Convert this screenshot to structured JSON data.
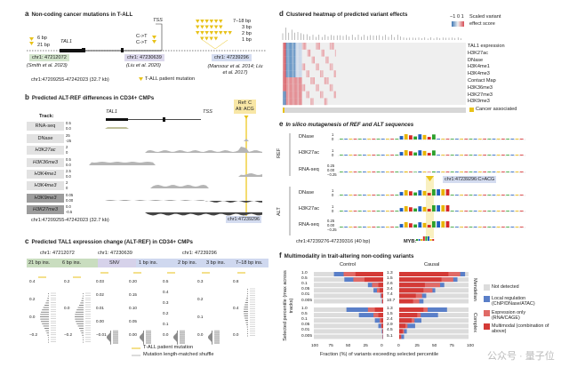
{
  "panel_a": {
    "letter": "a",
    "title": "Non-coding cancer mutations in T-ALL",
    "gene": "TAL1",
    "tss": "TSS",
    "left_sizes": [
      "6 bp",
      "21 bp"
    ],
    "snv_labels": [
      "C->T",
      "C->T"
    ],
    "right_sizes": [
      "7–18 bp",
      "3 bp",
      "2 bp",
      "1 bp"
    ],
    "loci": [
      {
        "pos": "chr1: 47212072",
        "cite": "(Smith et al. 2023)",
        "color": "#d3e4cc"
      },
      {
        "pos": "chr1: 47230639",
        "cite": "(Liu et al. 2020)",
        "color": "#dcd8ec"
      },
      {
        "pos": "chr1: 47239296",
        "cite": "(Mansour et al. 2014; Liu et al. 2017)",
        "color": "#d4dcf0"
      }
    ],
    "region": "chr1:47209255-47242023 (32.7 kb)",
    "legend": "T-ALL patient mutation"
  },
  "panel_b": {
    "letter": "b",
    "title": "Predicted ALT-REF differences in CD34+ CMPs",
    "track_header": "Track:",
    "gene": "TAL1",
    "tss": "TSS",
    "mutation_box": [
      "Ref: C",
      "Alt: ACG"
    ],
    "tracks": [
      {
        "name": "RNA-seq",
        "scale": [
          "0.5",
          "0.0"
        ]
      },
      {
        "name": "DNase",
        "scale": [
          "25",
          "-25"
        ]
      },
      {
        "name": "H3K27ac",
        "scale": [
          "2",
          "0"
        ]
      },
      {
        "name": "H3K36me3",
        "scale": [
          "0.5",
          "0.0"
        ]
      },
      {
        "name": "H3K4me1",
        "scale": [
          "2.5",
          "0.0"
        ]
      },
      {
        "name": "H3K4me3",
        "scale": [
          "2",
          "0"
        ]
      },
      {
        "name": "H3K9me3",
        "scale": [
          "0.05",
          "0.00"
        ]
      },
      {
        "name": "H3K27me3",
        "scale": [
          "0.0",
          "-0.5"
        ]
      }
    ],
    "region": "chr1:47209255-47242023 (32.7 kb)",
    "position": "chr1:47239296"
  },
  "panel_c": {
    "letter": "c",
    "title": "Predicted TAL1 expression change (ALT-REF) in CD34+ CMPs",
    "loci": [
      "chr1: 47212072",
      "chr1: 47230639",
      "chr1: 47239296"
    ],
    "groups": [
      "21 bp ins.",
      "6 bp ins.",
      "SNV",
      "1 bp ins.",
      "2 bp ins.",
      "3 bp ins.",
      "7–18 bp ins."
    ],
    "axes": [
      [
        "0.4",
        "0.2",
        "0.0",
        "−0.2"
      ],
      [
        "0.2",
        "0.0",
        "−0.2"
      ],
      [
        "0.03",
        "0.02",
        "0.01",
        "0.00",
        "−0.01"
      ],
      [
        "0.20",
        "0.15",
        "0.10",
        "0.05",
        "0.00"
      ],
      [
        "0.5",
        "0.4",
        "0.3",
        "0.2",
        "0.1",
        "0.0"
      ],
      [
        "0.3",
        "0.2",
        "0.1",
        "0.0"
      ],
      [
        "0.8",
        "0.4",
        "0.0"
      ]
    ],
    "legend": [
      "T-ALL patient mutation",
      "Mutation length-matched shuffle"
    ]
  },
  "panel_d": {
    "letter": "d",
    "title": "Clustered heatmap of predicted variant effects",
    "scale_ticks": [
      "−1",
      "0",
      "1"
    ],
    "scale_label": [
      "Scaled variant",
      "effect score"
    ],
    "rows": [
      "TAL1 expression",
      "H3K27ac",
      "DNase",
      "H3K4me1",
      "H3K4me3",
      "Contact Map",
      "H3K36me3",
      "H3K27me3",
      "H3K9me3"
    ],
    "cancer_label": "Cancer associated"
  },
  "panel_e": {
    "letter": "e",
    "title": "In silico mutagenesis of REF and ALT sequences",
    "groups": [
      "REF",
      "ALT"
    ],
    "tracks": [
      {
        "name": "DNase",
        "ticks": [
          "1",
          "0"
        ]
      },
      {
        "name": "H3K27ac",
        "ticks": [
          "1",
          "0"
        ]
      },
      {
        "name": "RNA-seq",
        "ticks": [
          "0.25",
          "0.00",
          "−0.25"
        ]
      }
    ],
    "mutation": "chr1:47239296:C>ACG",
    "region": "chr1:47239276-47239316 (40 bp)",
    "motif": "MYB:"
  },
  "chart_data": {
    "type": "bar",
    "title": "Multimodality in trait-altering non-coding variants",
    "letter": "f",
    "panels": [
      "Control",
      "Causal"
    ],
    "facets": [
      "Mendelian",
      "Complex"
    ],
    "ylabel": "Selected percentile (max across tracks)",
    "xlabel": "Fraction (%) of variants exceeding selected percentile",
    "percentiles": [
      "1.0",
      "0.5",
      "0.1",
      "0.05",
      "0.01",
      "0.005"
    ],
    "xticks_control": [
      "100",
      "75",
      "50",
      "25",
      "0"
    ],
    "xticks_causal": [
      "0",
      "25",
      "50",
      "75",
      "100"
    ],
    "ratios": {
      "Mendelian": [
        "1.3",
        "1.5",
        "2.6",
        "3.4",
        "7.4",
        "10.7"
      ],
      "Complex": [
        "1.3",
        "1.5",
        "2.4",
        "2.9",
        "4.5",
        "5.1"
      ]
    },
    "legend": [
      {
        "label": "Not detected",
        "color": "#dcdcdc"
      },
      {
        "label": "Local regulation (ChIP/DNase/ATAC)",
        "color": "#5a7fc8"
      },
      {
        "label": "Expression only (RNA/CAGE)",
        "color": "#e06a66"
      },
      {
        "label": "Multimodal (combination of above)",
        "color": "#d43a36"
      }
    ],
    "note": "cumulative % (multimodal, +expression only, +local regulation)",
    "series": {
      "Control": {
        "Mendelian": [
          [
            40,
            57,
            71
          ],
          [
            27,
            43,
            56
          ],
          [
            7,
            16,
            22
          ],
          [
            5,
            9,
            14
          ],
          [
            2,
            3,
            4
          ],
          [
            1,
            1.5,
            2
          ]
        ],
        "Complex": [
          [
            12,
            22,
            53
          ],
          [
            7,
            14,
            35
          ],
          [
            3,
            5,
            12
          ],
          [
            2,
            3,
            7
          ],
          [
            0.5,
            1,
            2
          ],
          [
            0.3,
            0.5,
            1
          ]
        ]
      },
      "Causal": {
        "Mendelian": [
          [
            71,
            88,
            95
          ],
          [
            61,
            78,
            84
          ],
          [
            37,
            59,
            65
          ],
          [
            35,
            48,
            52
          ],
          [
            24,
            33,
            39
          ],
          [
            20,
            29,
            35
          ]
        ],
        "Complex": [
          [
            35,
            41,
            69
          ],
          [
            26,
            31,
            56
          ],
          [
            18,
            22,
            32
          ],
          [
            9,
            12,
            23
          ],
          [
            5,
            7,
            11
          ],
          [
            2,
            3,
            7
          ]
        ]
      }
    }
  },
  "watermark": "公众号 · 量子位"
}
